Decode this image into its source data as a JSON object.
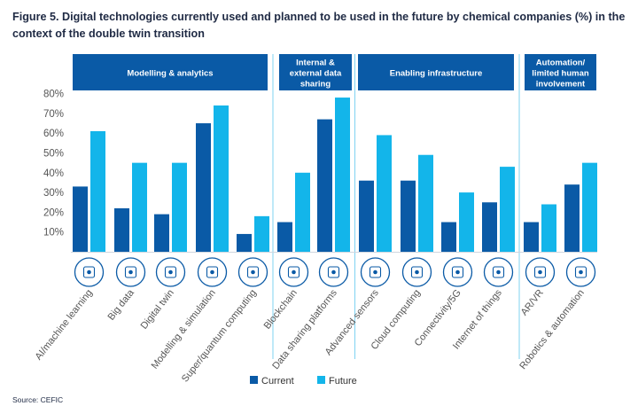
{
  "figure": {
    "title": "Figure 5. Digital technologies currently used and planned to be used in the future by chemical companies (%) in the context of the double twin transition",
    "source": "Source: CEFIC"
  },
  "colors": {
    "current": "#0a5aa6",
    "future": "#13b5ea",
    "header_bg": "#0a5aa6",
    "header_text": "#ffffff",
    "divider": "#7fd3f2",
    "axis_text": "#555555",
    "icon": "#0a5aa6"
  },
  "chart_data": {
    "type": "bar",
    "title": "Figure 5. Digital technologies currently used and planned to be used in the future by chemical companies (%) in the context of the double twin transition",
    "xlabel": "",
    "ylabel": "",
    "ylim": [
      0,
      80
    ],
    "yticks": [
      10,
      20,
      30,
      40,
      50,
      60,
      70,
      80
    ],
    "ytick_labels": [
      "10%",
      "20%",
      "30%",
      "40%",
      "50%",
      "60%",
      "70%",
      "80%"
    ],
    "grid": false,
    "legend_position": "bottom-center",
    "categories": [
      "AI/machine learning",
      "Big data",
      "Digital twin",
      "Modelling & simulation",
      "Super/quantum computing",
      "Blockchain",
      "Data sharing platforms",
      "Advanced sensors",
      "Cloud computing",
      "Connectivity/5G",
      "Internet of things",
      "AR/VR",
      "Robotics & automation"
    ],
    "series": [
      {
        "name": "Current",
        "values": [
          33,
          22,
          19,
          65,
          9,
          15,
          67,
          36,
          36,
          15,
          25,
          15,
          34
        ]
      },
      {
        "name": "Future",
        "values": [
          61,
          45,
          45,
          74,
          18,
          40,
          78,
          59,
          49,
          30,
          43,
          24,
          45
        ]
      }
    ],
    "groups": [
      {
        "label_lines": [
          "Modelling & analytics"
        ],
        "first": 0,
        "last": 4
      },
      {
        "label_lines": [
          "Internal &",
          "external data",
          "sharing"
        ],
        "first": 5,
        "last": 6
      },
      {
        "label_lines": [
          "Enabling infrastructure"
        ],
        "first": 7,
        "last": 10
      },
      {
        "label_lines": [
          "Automation/",
          "limited human",
          "involvement"
        ],
        "first": 11,
        "last": 12
      }
    ],
    "icons": [
      "brain-circuit-icon",
      "data-grid-icon",
      "cube-twin-icon",
      "monitor-simulation-icon",
      "chip-icon",
      "blockchain-network-icon",
      "shared-screens-icon",
      "sensor-chip-icon",
      "cloud-network-icon",
      "5g-signal-icon",
      "iot-devices-icon",
      "vr-headset-icon",
      "robot-gear-icon"
    ]
  }
}
